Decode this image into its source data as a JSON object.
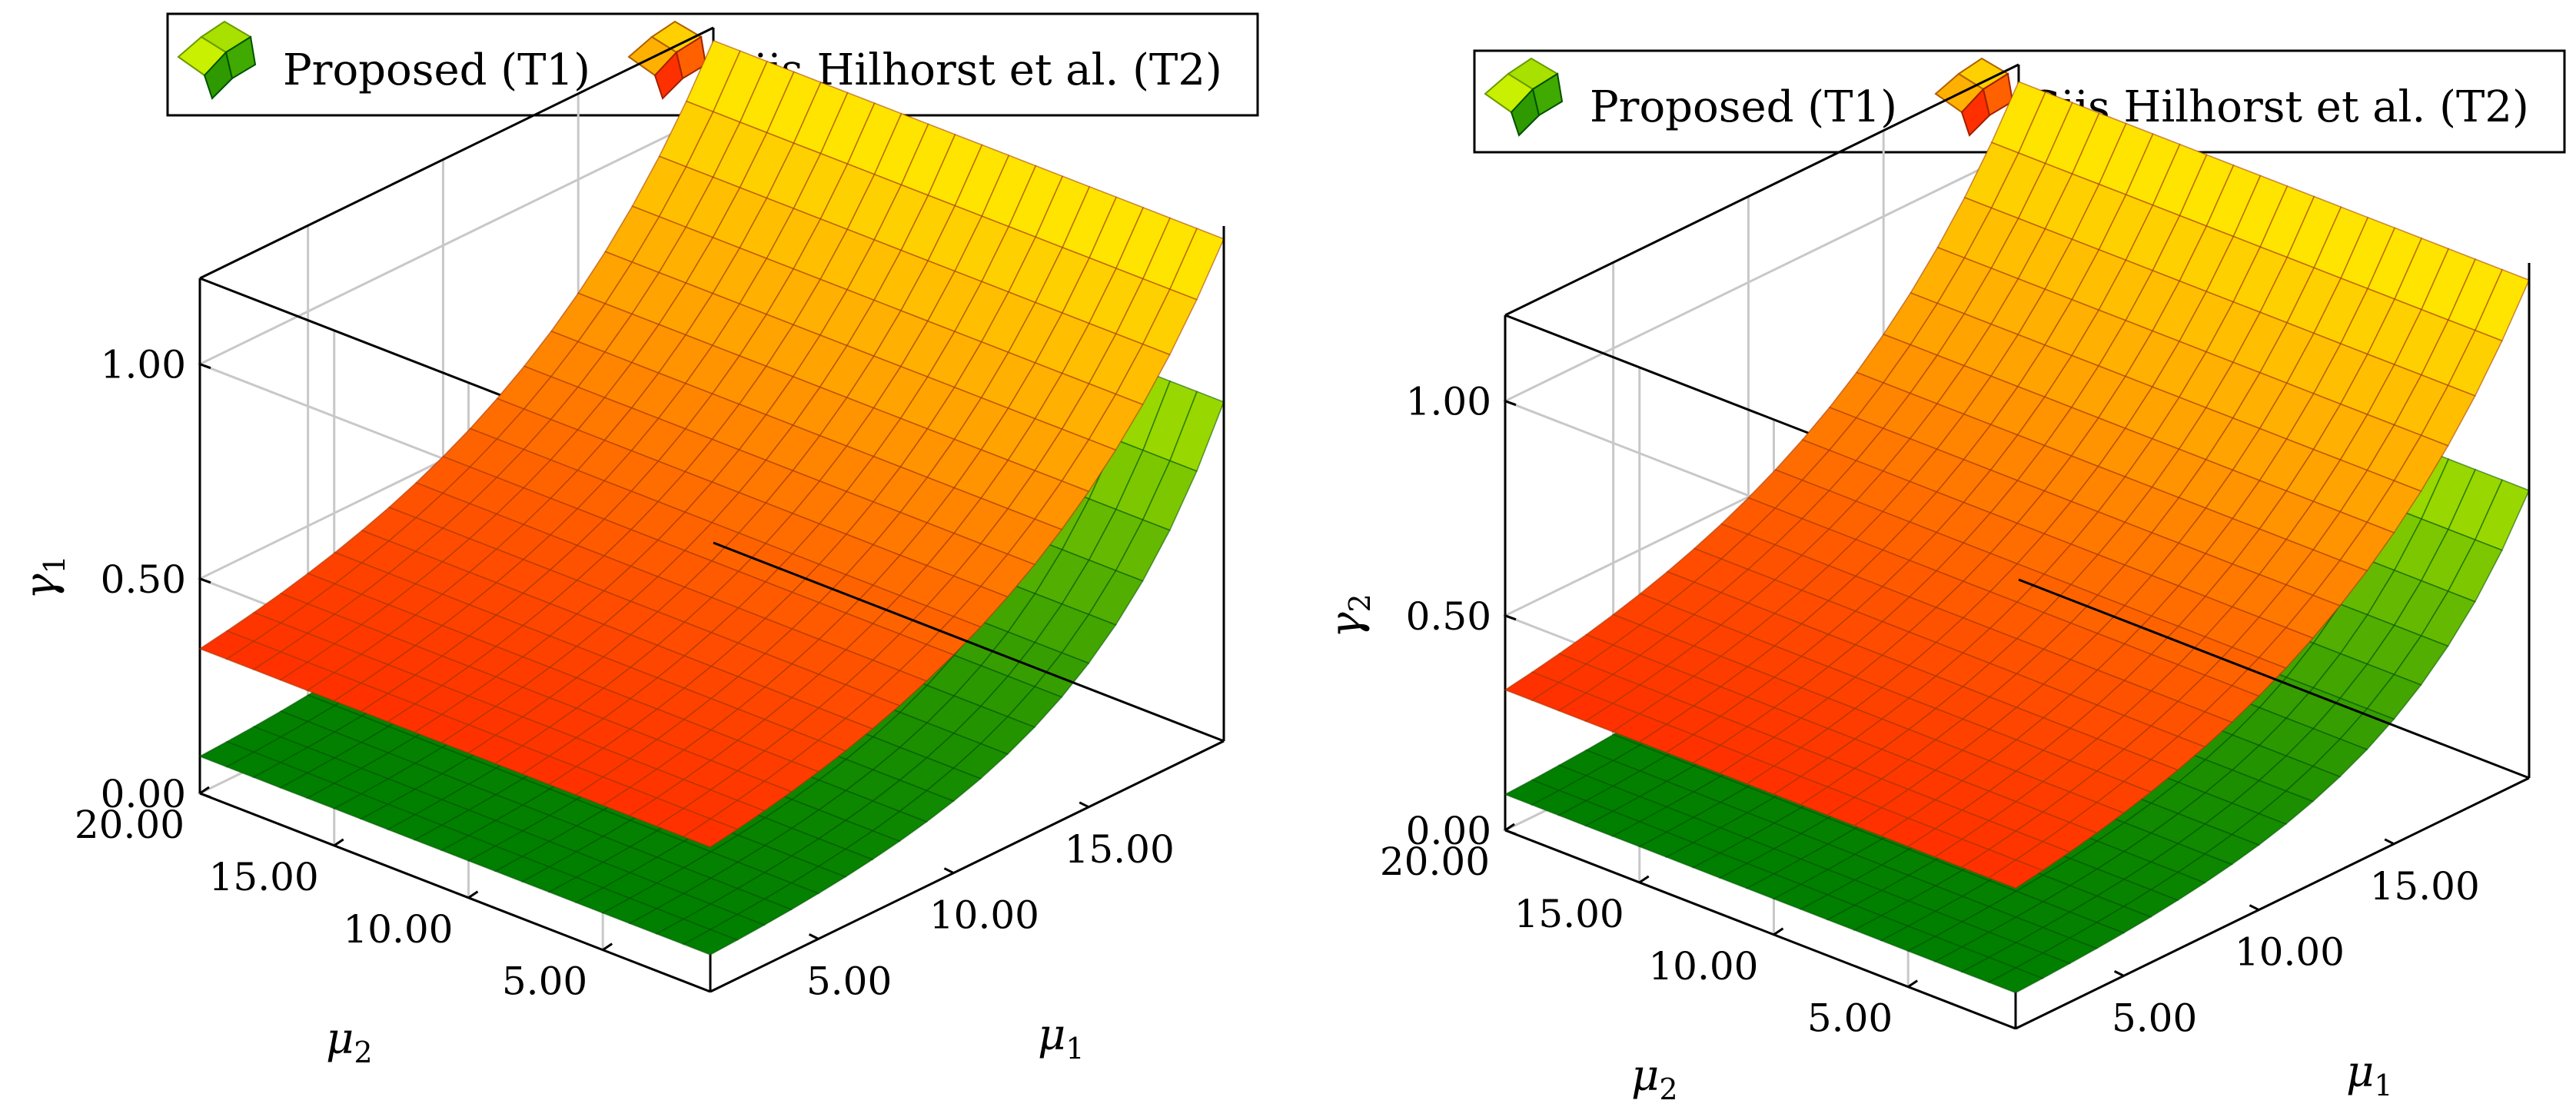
{
  "colors": {
    "t1_low": "#007f00",
    "t1_high": "#a8e000",
    "t2_low": "#ff3000",
    "t2_high": "#ffee00",
    "t1_edge": "#005000",
    "t2_edge": "#a03400",
    "grid": "#c8c8c8",
    "frame": "#000000"
  },
  "chart_data": [
    {
      "type": "surface",
      "title": "",
      "zlabel": "γ",
      "zlabel_sub": "1",
      "xlabel": "μ",
      "xlabel_sub": "1",
      "ylabel": "μ",
      "ylabel_sub": "2",
      "xlim": [
        1,
        20
      ],
      "ylim": [
        1,
        20
      ],
      "zlim": [
        0,
        1.2
      ],
      "x_ticks": [
        5,
        10,
        15
      ],
      "x_tick_labels": [
        "5.00",
        "10.00",
        "15.00"
      ],
      "y_ticks": [
        5,
        10,
        15,
        20
      ],
      "y_tick_labels": [
        "5.00",
        "10.00",
        "15.00",
        "20.00"
      ],
      "z_ticks": [
        0,
        0.5,
        1
      ],
      "z_tick_labels": [
        "0.00",
        "0.50",
        "1.00"
      ],
      "grid": true,
      "legend_position": "top",
      "legend": [
        {
          "name": "Proposed (T1)",
          "colormap": "green"
        },
        {
          "name": "Gijs Hilhorst et al. (T2)",
          "colormap": "hot"
        }
      ],
      "series": [
        {
          "name": "Proposed (T1)",
          "model": "z = a + b*exp(c*(mu1-20))",
          "a": 0.07,
          "b": 0.72,
          "c": 0.2
        },
        {
          "name": "Gijs Hilhorst et al. (T2)",
          "model": "z = a + b*exp(c*(mu1-20))",
          "a": 0.26,
          "b": 0.91,
          "c": 0.13
        }
      ]
    },
    {
      "type": "surface",
      "title": "",
      "zlabel": "γ",
      "zlabel_sub": "2",
      "xlabel": "μ",
      "xlabel_sub": "1",
      "ylabel": "μ",
      "ylabel_sub": "2",
      "xlim": [
        1,
        20
      ],
      "ylim": [
        1,
        20
      ],
      "zlim": [
        0,
        1.2
      ],
      "x_ticks": [
        5,
        10,
        15
      ],
      "x_tick_labels": [
        "5.00",
        "10.00",
        "15.00"
      ],
      "y_ticks": [
        5,
        10,
        15,
        20
      ],
      "y_tick_labels": [
        "5.00",
        "10.00",
        "15.00",
        "20.00"
      ],
      "z_ticks": [
        0,
        0.5,
        1
      ],
      "z_tick_labels": [
        "0.00",
        "0.50",
        "1.00"
      ],
      "grid": true,
      "legend_position": "top",
      "legend": [
        {
          "name": "Proposed (T1)",
          "colormap": "green"
        },
        {
          "name": "Gijs Hilhorst et al. (T2)",
          "colormap": "hot"
        }
      ],
      "series": [
        {
          "name": "Proposed (T1)",
          "model": "z = a + b*exp(c*(mu1-20))",
          "a": 0.07,
          "b": 0.6,
          "c": 0.2
        },
        {
          "name": "Gijs Hilhorst et al. (T2)",
          "model": "z = a + b*exp(c*(mu1-20))",
          "a": 0.25,
          "b": 0.91,
          "c": 0.13
        }
      ]
    }
  ]
}
